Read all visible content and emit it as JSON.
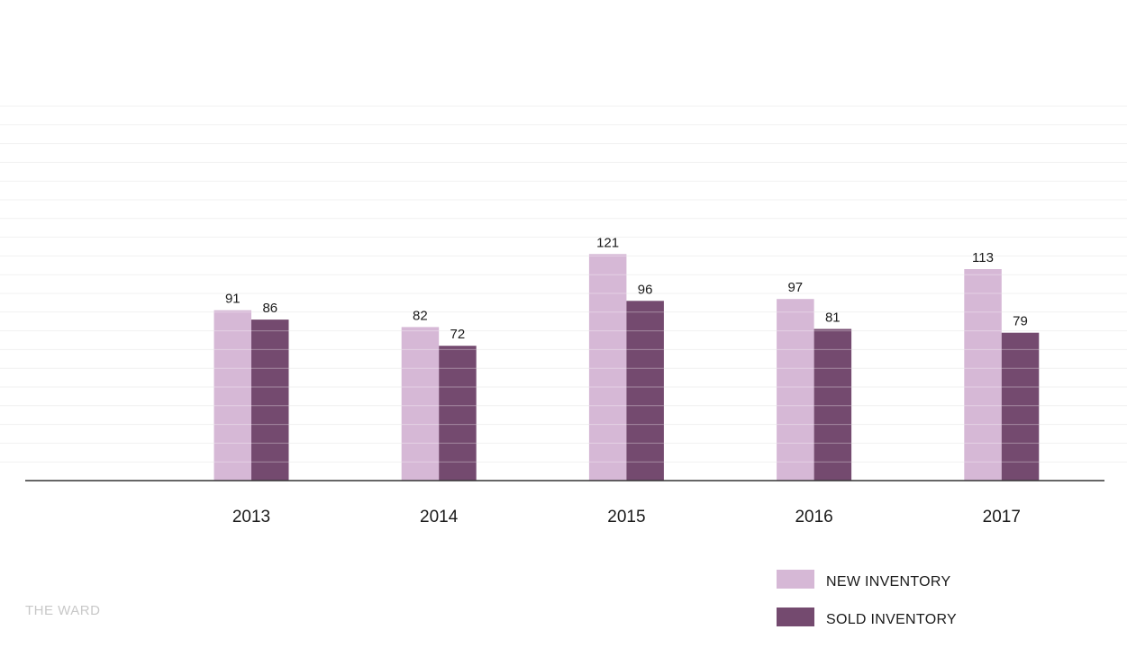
{
  "chart_data": {
    "type": "bar",
    "categories": [
      "2013",
      "2014",
      "2015",
      "2016",
      "2017"
    ],
    "series": [
      {
        "name": "NEW INVENTORY",
        "values": [
          91,
          82,
          121,
          97,
          113
        ],
        "color": "#d6b8d6"
      },
      {
        "name": "SOLD INVENTORY",
        "values": [
          86,
          72,
          96,
          81,
          79
        ],
        "color": "#744a6f"
      }
    ],
    "ylim": [
      0,
      200
    ],
    "grid": true,
    "legend_position": "bottom-right",
    "title": "",
    "xlabel": "",
    "ylabel": ""
  },
  "brand": "THE WARD"
}
